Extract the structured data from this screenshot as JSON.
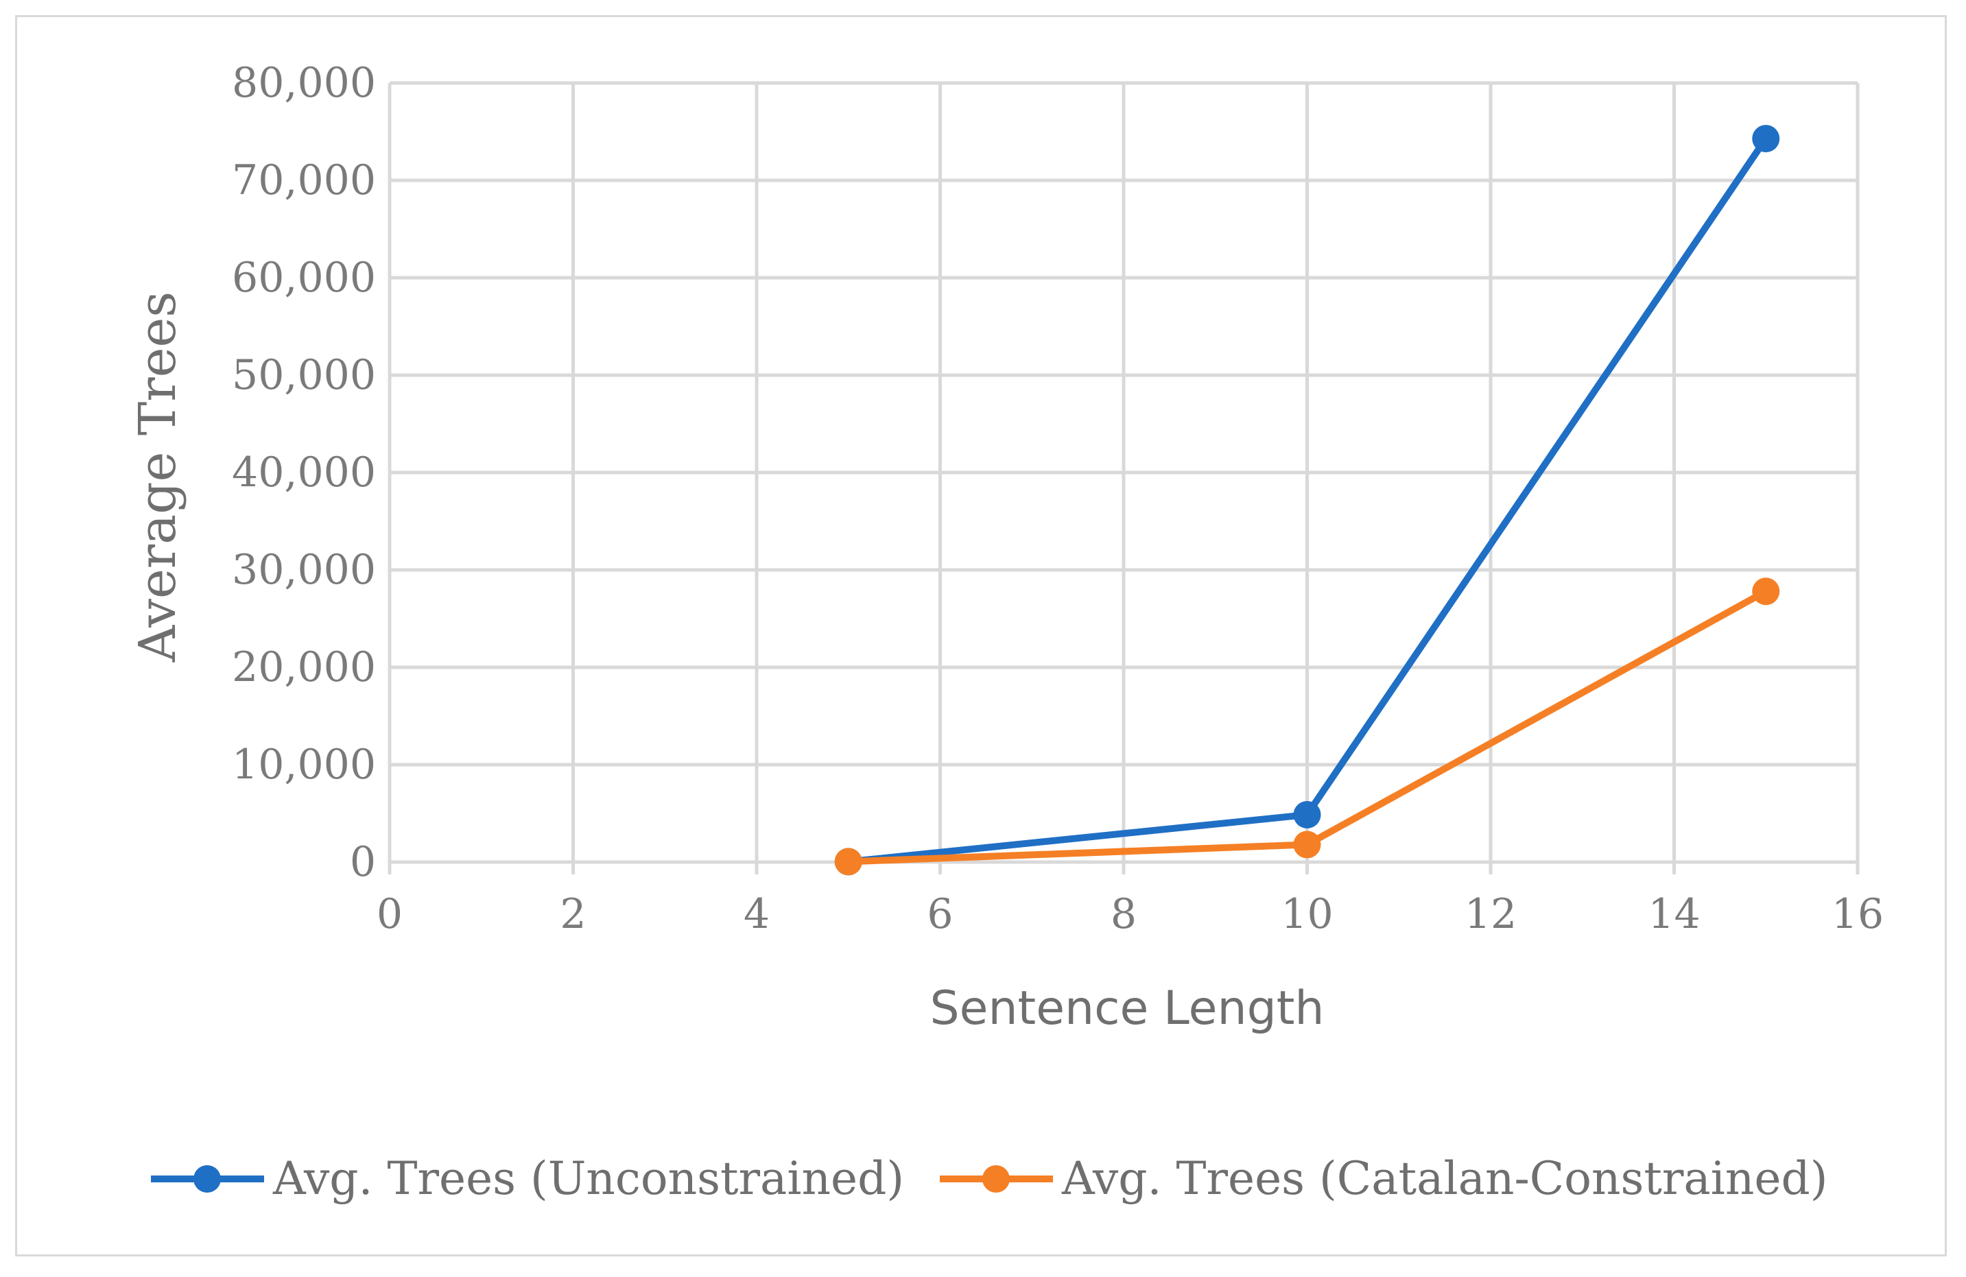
{
  "chart_data": {
    "type": "line",
    "title": "",
    "xlabel": "Sentence Length",
    "ylabel": "Average Trees",
    "xlim": [
      0,
      16
    ],
    "ylim": [
      0,
      80000
    ],
    "x_ticks": [
      0,
      2,
      4,
      6,
      8,
      10,
      12,
      14,
      16
    ],
    "x_tick_labels": [
      "0",
      "2",
      "4",
      "6",
      "8",
      "10",
      "12",
      "14",
      "16"
    ],
    "y_ticks": [
      0,
      10000,
      20000,
      30000,
      40000,
      50000,
      60000,
      70000,
      80000
    ],
    "y_tick_labels": [
      "0",
      "10,000",
      "20,000",
      "30,000",
      "40,000",
      "50,000",
      "60,000",
      "70,000",
      "80,000"
    ],
    "grid": true,
    "legend_position": "bottom",
    "series": [
      {
        "name": "Avg. Trees (Unconstrained)",
        "color": "#1f6fc5",
        "x": [
          5,
          10,
          15
        ],
        "values": [
          42,
          4862,
          74290
        ]
      },
      {
        "name": "Avg. Trees (Catalan-Constrained)",
        "color": "#f57f25",
        "x": [
          5,
          10,
          15
        ],
        "values": [
          42,
          1796,
          27797
        ]
      }
    ]
  }
}
